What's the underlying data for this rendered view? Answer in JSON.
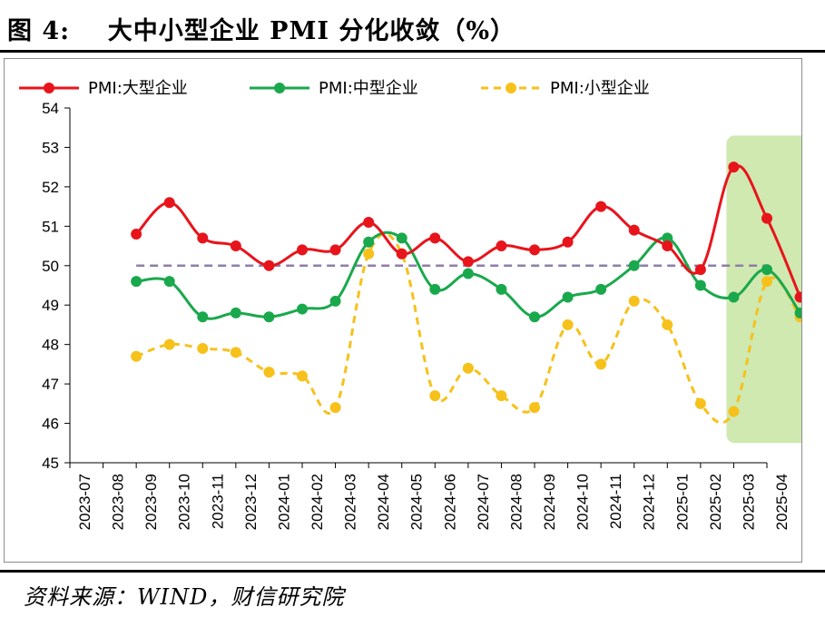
{
  "title": "图 4:    大中小型企业 PMI 分化收敛（%）",
  "source": "资料来源：WIND，财信研究院",
  "colors": {
    "large": "#e8141b",
    "medium": "#1aa84c",
    "small": "#f7c11b",
    "reference": "#8e7ea8",
    "highlight": "#cfe9b1",
    "large_highlight": "#d4562a"
  },
  "chart_data": {
    "type": "line",
    "title": "",
    "xlabel": "",
    "ylabel": "",
    "ylim": [
      45,
      54
    ],
    "yticks": [
      45,
      46,
      47,
      48,
      49,
      50,
      51,
      52,
      53,
      54
    ],
    "grid": false,
    "legend_position": "top",
    "x_tick_labels": [
      "2023-07",
      "2023-08",
      "2023-09",
      "2023-10",
      "2023-11",
      "2023-12",
      "2024-01",
      "2024-02",
      "2024-03",
      "2024-04",
      "2024-05",
      "2024-06",
      "2024-07",
      "2024-08",
      "2024-09",
      "2024-10",
      "2024-11",
      "2024-12",
      "2025-01",
      "2025-02",
      "2025-03",
      "2025-04"
    ],
    "categories": [
      "2023-08",
      "2023-09",
      "2023-10",
      "2023-11",
      "2023-12",
      "2024-01",
      "2024-02",
      "2024-03",
      "2024-04",
      "2024-05",
      "2024-06",
      "2024-07",
      "2024-08",
      "2024-09",
      "2024-10",
      "2024-11",
      "2024-12",
      "2025-01",
      "2025-02",
      "2025-03",
      "2025-04"
    ],
    "reference_line": 50,
    "highlight_range": [
      "2025-02",
      "2025-04"
    ],
    "series": [
      {
        "name": "PMI:大型企业",
        "key": "large",
        "style": "solid",
        "values": [
          50.8,
          51.6,
          50.7,
          50.5,
          50.0,
          50.4,
          50.4,
          51.1,
          50.3,
          50.7,
          50.1,
          50.5,
          50.4,
          50.6,
          51.5,
          50.9,
          50.5,
          49.9,
          52.5,
          51.2,
          49.2
        ]
      },
      {
        "name": "PMI:中型企业",
        "key": "medium",
        "style": "solid",
        "values": [
          49.6,
          49.6,
          48.7,
          48.8,
          48.7,
          48.9,
          49.1,
          50.6,
          50.7,
          49.4,
          49.8,
          49.4,
          48.7,
          49.2,
          49.4,
          50.0,
          50.7,
          49.5,
          49.2,
          49.9,
          48.8
        ]
      },
      {
        "name": "PMI:小型企业",
        "key": "small",
        "style": "dashed",
        "values": [
          47.7,
          48.0,
          47.9,
          47.8,
          47.3,
          47.2,
          46.4,
          50.3,
          50.3,
          46.7,
          47.4,
          46.7,
          46.4,
          48.5,
          47.5,
          49.1,
          48.5,
          46.5,
          46.3,
          49.6,
          48.7
        ]
      }
    ]
  }
}
